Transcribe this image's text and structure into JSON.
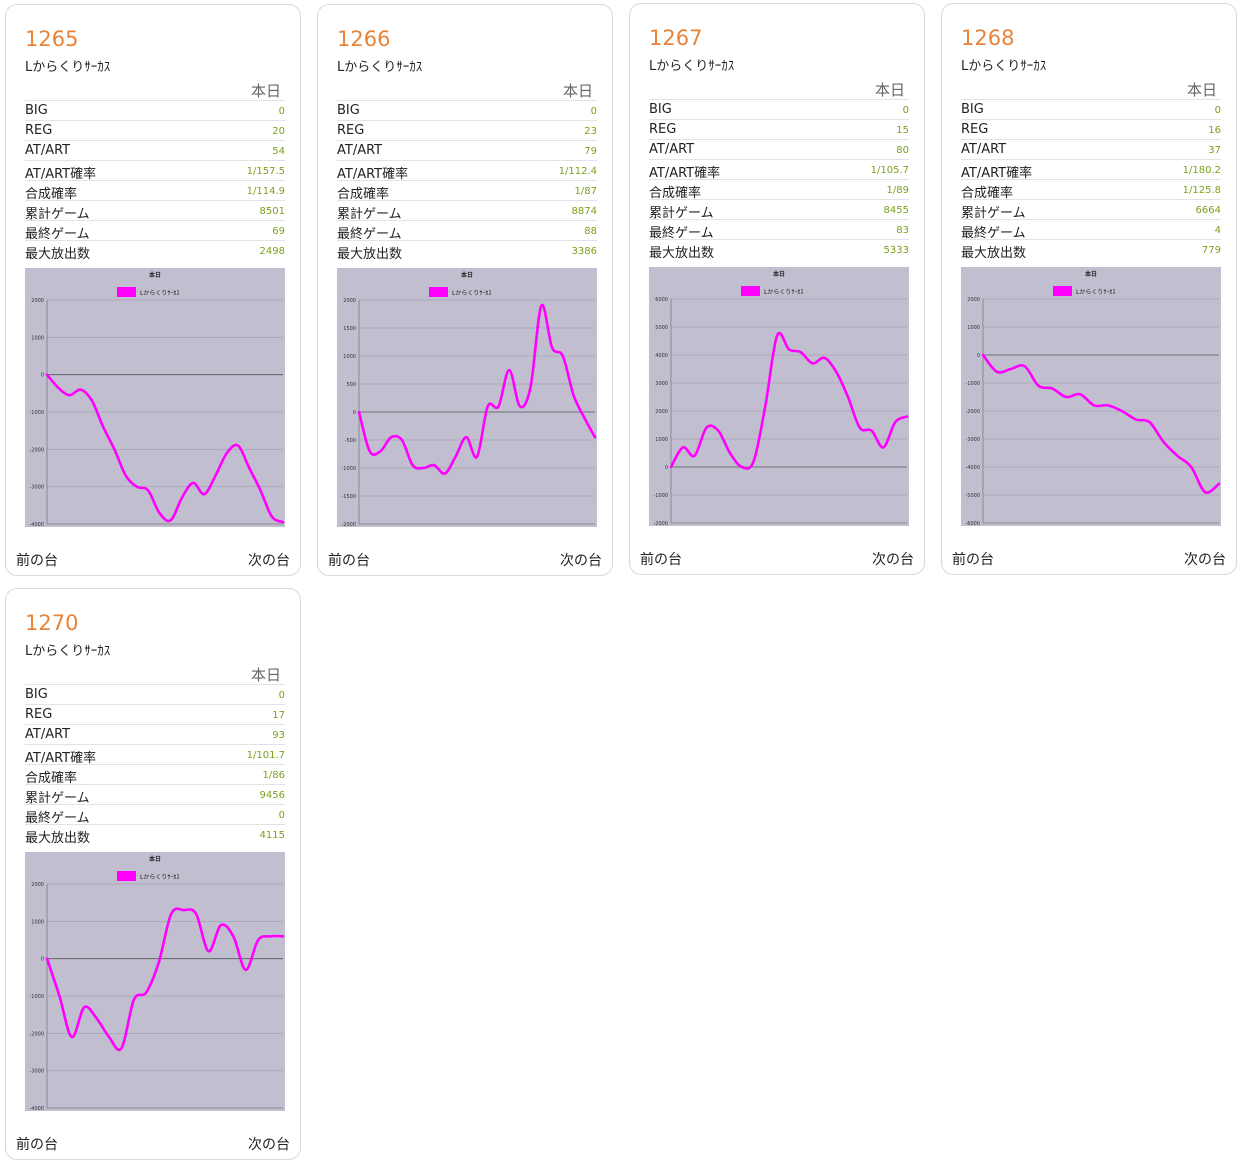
{
  "labels": {
    "today": "本日",
    "prev": "前の台",
    "next": "次の台",
    "stat_keys": [
      "BIG",
      "REG",
      "AT/ART",
      "AT/ART確率",
      "合成確率",
      "累計ゲーム",
      "最終ゲーム",
      "最大放出数"
    ]
  },
  "colors": {
    "number": "#e8833a",
    "value": "#7aa11b",
    "chart_bg": "#c1bed0",
    "line": "#ff00ff"
  },
  "machines": [
    {
      "number": "1265",
      "model": "Lからくりｻｰｶｽ",
      "stats": [
        "0",
        "20",
        "54",
        "1/157.5",
        "1/114.9",
        "8501",
        "69",
        "2498"
      ],
      "chart_data": {
        "type": "line",
        "title": "本日",
        "series_name": "Lからくりｻｰｶｽ",
        "yticks": [
          "2000",
          "1000",
          "0",
          "-1000",
          "-2000",
          "-3000",
          "-4000"
        ],
        "ylim": [
          -4000,
          2000
        ],
        "y": [
          0,
          -350,
          -550,
          -400,
          -700,
          -1400,
          -2000,
          -2700,
          -3000,
          -3100,
          -3700,
          -3900,
          -3300,
          -2900,
          -3200,
          -2700,
          -2100,
          -1900,
          -2500,
          -3100,
          -3800,
          -3950
        ]
      }
    },
    {
      "number": "1266",
      "model": "Lからくりｻｰｶｽ",
      "stats": [
        "0",
        "23",
        "79",
        "1/112.4",
        "1/87",
        "8874",
        "88",
        "3386"
      ],
      "chart_data": {
        "type": "line",
        "title": "本日",
        "series_name": "Lからくりｻｰｶｽ",
        "yticks": [
          "2000",
          "1500",
          "1000",
          "500",
          "0",
          "-500",
          "-1000",
          "-1500",
          "-2000"
        ],
        "ylim": [
          -2000,
          2000
        ],
        "y": [
          0,
          -700,
          -700,
          -450,
          -500,
          -950,
          -1000,
          -950,
          -1100,
          -800,
          -450,
          -800,
          100,
          100,
          750,
          100,
          450,
          1900,
          1150,
          1000,
          300,
          -100,
          -450
        ]
      }
    },
    {
      "number": "1267",
      "model": "Lからくりｻｰｶｽ",
      "stats": [
        "0",
        "15",
        "80",
        "1/105.7",
        "1/89",
        "8455",
        "83",
        "5333"
      ],
      "chart_data": {
        "type": "line",
        "title": "本日",
        "series_name": "Lからくりｻｰｶｽ",
        "yticks": [
          "6000",
          "5000",
          "4000",
          "3000",
          "2000",
          "1000",
          "0",
          "-1000",
          "-2000"
        ],
        "ylim": [
          -2000,
          6000
        ],
        "y": [
          0,
          700,
          400,
          1400,
          1300,
          500,
          0,
          200,
          2200,
          4700,
          4200,
          4100,
          3700,
          3900,
          3400,
          2500,
          1400,
          1300,
          700,
          1600,
          1800
        ]
      }
    },
    {
      "number": "1268",
      "model": "Lからくりｻｰｶｽ",
      "stats": [
        "0",
        "16",
        "37",
        "1/180.2",
        "1/125.8",
        "6664",
        "4",
        "779"
      ],
      "chart_data": {
        "type": "line",
        "title": "本日",
        "series_name": "Lからくりｻｰｶｽ",
        "yticks": [
          "2000",
          "1000",
          "0",
          "-1000",
          "-2000",
          "-3000",
          "-4000",
          "-5000",
          "-6000"
        ],
        "ylim": [
          -6000,
          2000
        ],
        "y": [
          0,
          -600,
          -500,
          -400,
          -1100,
          -1200,
          -1500,
          -1400,
          -1800,
          -1800,
          -2000,
          -2300,
          -2400,
          -3100,
          -3600,
          -4000,
          -4900,
          -4600
        ]
      }
    },
    {
      "number": "1270",
      "model": "Lからくりｻｰｶｽ",
      "stats": [
        "0",
        "17",
        "93",
        "1/101.7",
        "1/86",
        "9456",
        "0",
        "4115"
      ],
      "chart_data": {
        "type": "line",
        "title": "本日",
        "series_name": "Lからくりｻｰｶｽ",
        "yticks": [
          "2000",
          "1000",
          "0",
          "-1000",
          "-2000",
          "-3000",
          "-4000"
        ],
        "ylim": [
          -4000,
          2000
        ],
        "y": [
          0,
          -1000,
          -2100,
          -1300,
          -1600,
          -2100,
          -2400,
          -1100,
          -900,
          -100,
          1200,
          1300,
          1200,
          200,
          900,
          600,
          -300,
          500,
          600,
          600
        ]
      }
    }
  ]
}
